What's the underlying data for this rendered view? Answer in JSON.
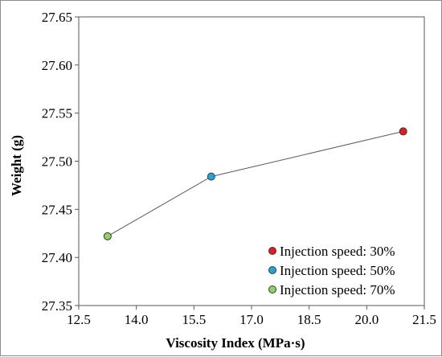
{
  "chart_data": {
    "type": "scatter",
    "title": "",
    "xlabel": "Viscosity Index (MPa·s)",
    "ylabel": "Weight (g)",
    "xlim": [
      12.5,
      21.5
    ],
    "ylim": [
      27.35,
      27.65
    ],
    "xticks": [
      12.5,
      14.0,
      15.5,
      17.0,
      18.5,
      20.0,
      21.5
    ],
    "xtick_labels": [
      "12.5",
      "14.0",
      "15.5",
      "17.0",
      "18.5",
      "20.0",
      "21.5"
    ],
    "yticks": [
      27.35,
      27.4,
      27.45,
      27.5,
      27.55,
      27.6,
      27.65
    ],
    "ytick_labels": [
      "27.35",
      "27.40",
      "27.45",
      "27.50",
      "27.55",
      "27.60",
      "27.65"
    ],
    "grid": false,
    "legend_position": "bottom-right",
    "connecting_line": true,
    "line_color": "#5a5a5a",
    "series": [
      {
        "name": "Injection speed: 30%",
        "x": 20.95,
        "y": 27.531,
        "color": "#e8191c"
      },
      {
        "name": "Injection speed: 50%",
        "x": 15.95,
        "y": 27.484,
        "color": "#1ea5e0"
      },
      {
        "name": "Injection speed: 70%",
        "x": 13.25,
        "y": 27.422,
        "color": "#8ed35a"
      }
    ]
  }
}
